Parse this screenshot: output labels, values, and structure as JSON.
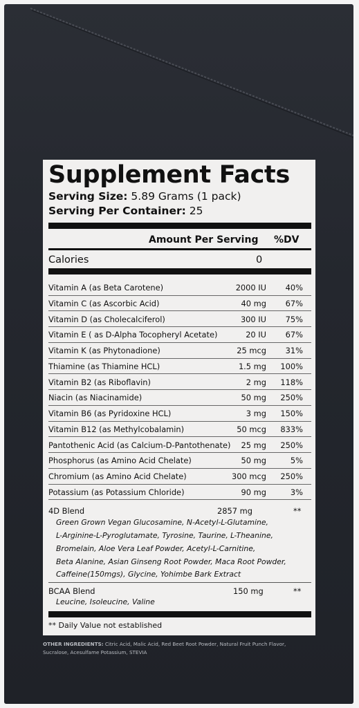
{
  "panel": {
    "title": "Supplement Facts",
    "serving_size_label": "Serving Size:",
    "serving_size_value": "5.89 Grams (1 pack)",
    "servings_label": "Serving Per Container:",
    "servings_value": "25",
    "header_amount": "Amount Per Serving",
    "header_dv": "%DV",
    "calories_label": "Calories",
    "calories_value": "0"
  },
  "nutrients": [
    {
      "name": "Vitamin A (as Beta Carotene)",
      "amount": "2000 IU",
      "dv": "40%"
    },
    {
      "name": "Vitamin C (as Ascorbic Acid)",
      "amount": "40 mg",
      "dv": "67%"
    },
    {
      "name": "Vitamin D (as Cholecalciferol)",
      "amount": "300 IU",
      "dv": "75%"
    },
    {
      "name": "Vitamin E ( as D-Alpha Tocopheryl Acetate)",
      "amount": "20 IU",
      "dv": "67%"
    },
    {
      "name": "Vitamin K (as Phytonadione)",
      "amount": "25 mcg",
      "dv": "31%"
    },
    {
      "name": "Thiamine (as Thiamine HCL)",
      "amount": "1.5 mg",
      "dv": "100%"
    },
    {
      "name": "Vitamin B2 (as Riboflavin)",
      "amount": "2 mg",
      "dv": "118%"
    },
    {
      "name": "Niacin (as Niacinamide)",
      "amount": "50 mg",
      "dv": "250%"
    },
    {
      "name": "Vitamin B6 (as Pyridoxine HCL)",
      "amount": "3 mg",
      "dv": "150%"
    },
    {
      "name": "Vitamin B12 (as Methylcobalamin)",
      "amount": "50 mcg",
      "dv": "833%"
    },
    {
      "name": "Pantothenic Acid (as Calcium-D-Pantothenate)",
      "amount": "25 mg",
      "dv": "250%"
    },
    {
      "name": "Phosphorus (as Amino Acid Chelate)",
      "amount": "50 mg",
      "dv": "5%"
    },
    {
      "name": "Chromium (as Amino Acid Chelate)",
      "amount": "300 mcg",
      "dv": "250%"
    },
    {
      "name": "Potassium (as Potassium Chloride)",
      "amount": "90 mg",
      "dv": "3%"
    }
  ],
  "blend_4d": {
    "name": "4D Blend",
    "amount": "2857 mg",
    "dv": "**",
    "ingredients": [
      "Green Grown Vegan Glucosamine, N-Acetyl-L-Glutamine,",
      "L-Arginine-L-Pyroglutamate, Tyrosine, Taurine, L-Theanine,",
      "Bromelain, Aloe Vera Leaf Powder, Acetyl-L-Carnitine,",
      "Beta Alanine, Asian Ginseng Root Powder, Maca Root Powder,",
      "Caffeine(150mgs), Glycine, Yohimbe Bark Extract"
    ]
  },
  "blend_bcaa": {
    "name": "BCAA Blend",
    "amount": "150 mg",
    "dv": "**",
    "ingredients": [
      "Leucine, Isoleucine, Valine"
    ]
  },
  "footnote": "** Daily Value not established",
  "other_ingredients": {
    "label": "OTHER INGREDIENTS:",
    "line1": "Citric Acid, Malic Acid, Red Beet Root Powder, Natural Fruit Punch Flavor,",
    "line2": "Sucralose, Acesulfame Potassium, STEVIA"
  },
  "colors": {
    "box": "#24272e",
    "label_background": "#f1f0ef",
    "text": "#111111",
    "other_text": "#b9bcc2"
  }
}
